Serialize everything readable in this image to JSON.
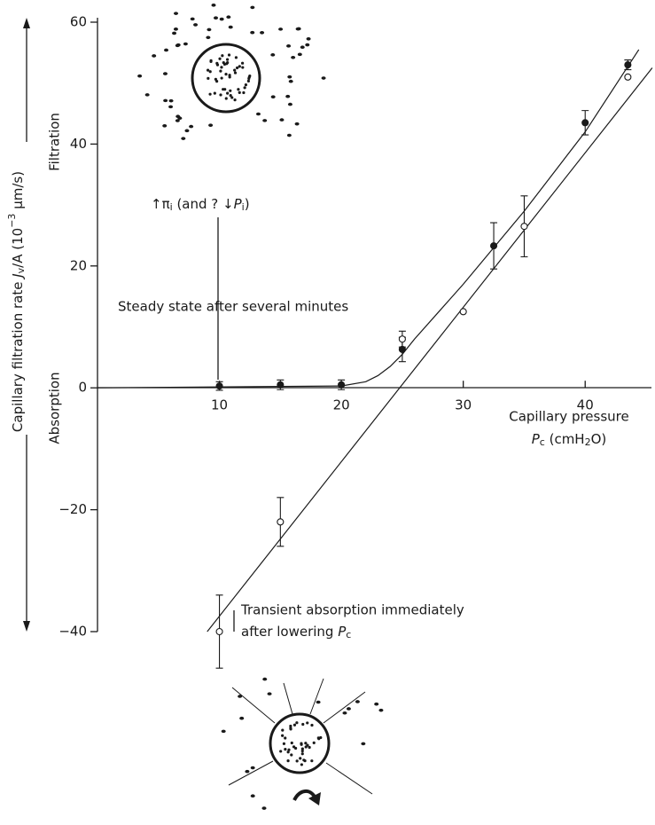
{
  "chart_data": {
    "type": "scatter",
    "y_label": [
      "Capillary filtration rate ",
      "J",
      "v",
      "/A (10",
      "−3",
      " μm/s)"
    ],
    "filtration_label": "Filtration",
    "absorption_label": "Absorption",
    "x_label": [
      "Capillary pressure",
      "P",
      "c",
      " (cmH",
      "2",
      "O)"
    ],
    "annotations": {
      "raised_pressure": [
        "↑π",
        "i",
        " (and ? ↓",
        "P",
        "i",
        ")"
      ],
      "steady": "Steady state after several minutes",
      "transient": [
        "Transient absorption immediately",
        "after lowering ",
        "P",
        "c"
      ]
    },
    "xlim": [
      0,
      45
    ],
    "ylim": [
      -40,
      60
    ],
    "xticks": [
      10,
      20,
      30,
      40
    ],
    "yticks": [
      {
        "value": -40,
        "label": "−40"
      },
      {
        "value": -20,
        "label": "−20"
      },
      0,
      20,
      40,
      60
    ],
    "series": [
      {
        "color": "#1a1a1a",
        "fill": "#1a1a1a",
        "x": [
          10,
          15,
          20,
          25,
          32.5,
          40,
          43.5
        ],
        "values": [
          0.3,
          0.5,
          0.5,
          6.3,
          23.3,
          43.5,
          53
        ],
        "errors": [
          0.7,
          0.8,
          0.8,
          2,
          3.8,
          2,
          0.8
        ]
      },
      {
        "color": "#1a1a1a",
        "fill": "#ffffff",
        "x": [
          10,
          15,
          25,
          30,
          35,
          43.5
        ],
        "values": [
          -40,
          -22,
          8,
          12.5,
          26.5,
          51
        ],
        "errors": [
          6,
          4,
          1.3,
          null,
          5,
          null
        ]
      }
    ],
    "curves": [
      {
        "color": "#1a1a1a",
        "x": [
          0,
          20,
          22,
          23,
          24,
          25,
          26,
          28,
          30,
          35,
          40,
          44.4
        ],
        "values": [
          0,
          0.3,
          1,
          2,
          3.5,
          5.5,
          8,
          12.5,
          17,
          29,
          42,
          55.5
        ]
      },
      {
        "color": "#1a1a1a",
        "x": [
          9,
          45.5
        ],
        "values": [
          -40,
          52.5
        ]
      }
    ]
  }
}
